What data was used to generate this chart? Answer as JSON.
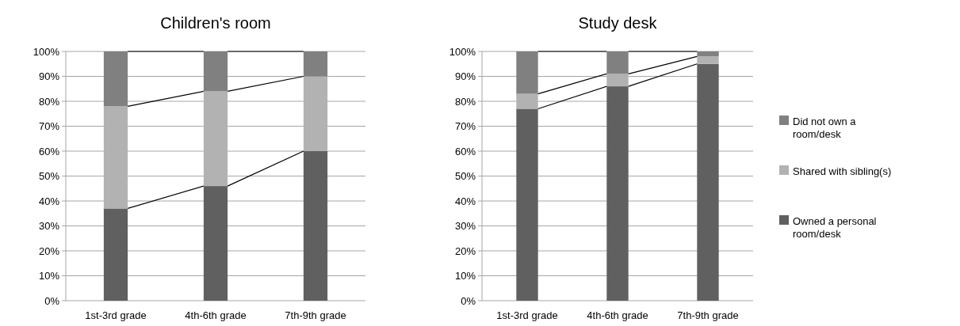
{
  "chart_data": [
    {
      "type": "bar",
      "title": "Children's room",
      "stacked": true,
      "categories": [
        "1st-3rd grade",
        "4th-6th grade",
        "7th-9th grade"
      ],
      "series": [
        {
          "color": "#606060",
          "values": [
            37,
            46,
            60
          ]
        },
        {
          "color": "#b2b2b2",
          "values": [
            41,
            38,
            30
          ]
        },
        {
          "color": "#808080",
          "values": [
            22,
            16,
            10
          ]
        }
      ],
      "ylim": [
        0,
        100
      ],
      "yticks": [
        {
          "value": 0,
          "label": "0%"
        },
        {
          "value": 10,
          "label": "10%"
        },
        {
          "value": 20,
          "label": "20%"
        },
        {
          "value": 30,
          "label": "30%"
        },
        {
          "value": 40,
          "label": "40%"
        },
        {
          "value": 50,
          "label": "50%"
        },
        {
          "value": 60,
          "label": "60%"
        },
        {
          "value": 70,
          "label": "70%"
        },
        {
          "value": 80,
          "label": "80%"
        },
        {
          "value": 90,
          "label": "90%"
        },
        {
          "value": 100,
          "label": "100%"
        }
      ],
      "grid": "y",
      "legend": false
    },
    {
      "type": "bar",
      "title": "Study desk",
      "stacked": true,
      "categories": [
        "1st-3rd grade",
        "4th-6th grade",
        "7th-9th grade"
      ],
      "series": [
        {
          "name": "Owned a personal room/desk",
          "color": "#606060",
          "values": [
            77,
            86,
            95
          ]
        },
        {
          "name": "Shared with sibling(s)",
          "color": "#b2b2b2",
          "values": [
            6,
            5,
            3
          ]
        },
        {
          "name": "Did not own a room/desk",
          "color": "#808080",
          "values": [
            17,
            9,
            2
          ]
        }
      ],
      "ylim": [
        0,
        100
      ],
      "yticks": [
        {
          "value": 0,
          "label": "0%"
        },
        {
          "value": 10,
          "label": "10%"
        },
        {
          "value": 20,
          "label": "20%"
        },
        {
          "value": 30,
          "label": "30%"
        },
        {
          "value": 40,
          "label": "40%"
        },
        {
          "value": 50,
          "label": "50%"
        },
        {
          "value": 60,
          "label": "60%"
        },
        {
          "value": 70,
          "label": "70%"
        },
        {
          "value": 80,
          "label": "80%"
        },
        {
          "value": 90,
          "label": "90%"
        },
        {
          "value": 100,
          "label": "100%"
        }
      ],
      "grid": "y",
      "legend": "right"
    }
  ]
}
